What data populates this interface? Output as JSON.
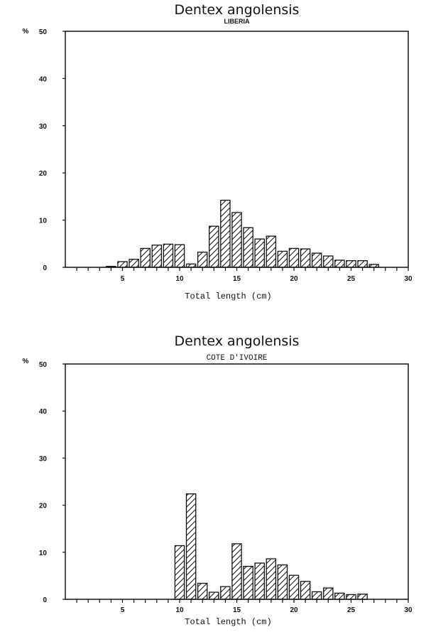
{
  "chart_data": [
    {
      "type": "bar",
      "title": "Dentex angolensis",
      "subtitle": "LIBERIA",
      "xlabel": "Total length (cm)",
      "ylabel": "%",
      "xlim": [
        0,
        30
      ],
      "ylim": [
        0,
        50
      ],
      "xticks": [
        "5",
        "10",
        "15",
        "20",
        "25",
        "30"
      ],
      "yticks": [
        "0",
        "10",
        "20",
        "30",
        "40",
        "50"
      ],
      "grid": false,
      "x": [
        4,
        5,
        6,
        7,
        8,
        9,
        10,
        11,
        12,
        13,
        14,
        15,
        16,
        17,
        18,
        19,
        20,
        21,
        22,
        23,
        24,
        25,
        26,
        27
      ],
      "values": [
        0.2,
        1.2,
        1.7,
        4.0,
        4.7,
        4.9,
        4.8,
        0.7,
        3.2,
        8.7,
        14.2,
        11.6,
        8.4,
        6.0,
        6.6,
        3.4,
        4.0,
        3.9,
        3.0,
        2.4,
        1.5,
        1.4,
        1.4,
        0.6
      ]
    },
    {
      "type": "bar",
      "title": "Dentex angolensis",
      "subtitle": "COTE D'IVOIRE",
      "xlabel": "Total length (cm)",
      "ylabel": "%",
      "xlim": [
        0,
        30
      ],
      "ylim": [
        0,
        50
      ],
      "xticks": [
        "5",
        "10",
        "15",
        "20",
        "25",
        "30"
      ],
      "yticks": [
        "0",
        "10",
        "20",
        "30",
        "40",
        "50"
      ],
      "grid": false,
      "x": [
        10,
        11,
        12,
        13,
        14,
        15,
        16,
        17,
        18,
        19,
        20,
        21,
        22,
        23,
        24,
        25,
        26
      ],
      "values": [
        11.4,
        22.4,
        3.4,
        1.5,
        2.7,
        11.8,
        7.0,
        7.7,
        8.6,
        7.3,
        5.1,
        3.8,
        1.6,
        2.4,
        1.3,
        1.0,
        1.1
      ]
    }
  ]
}
